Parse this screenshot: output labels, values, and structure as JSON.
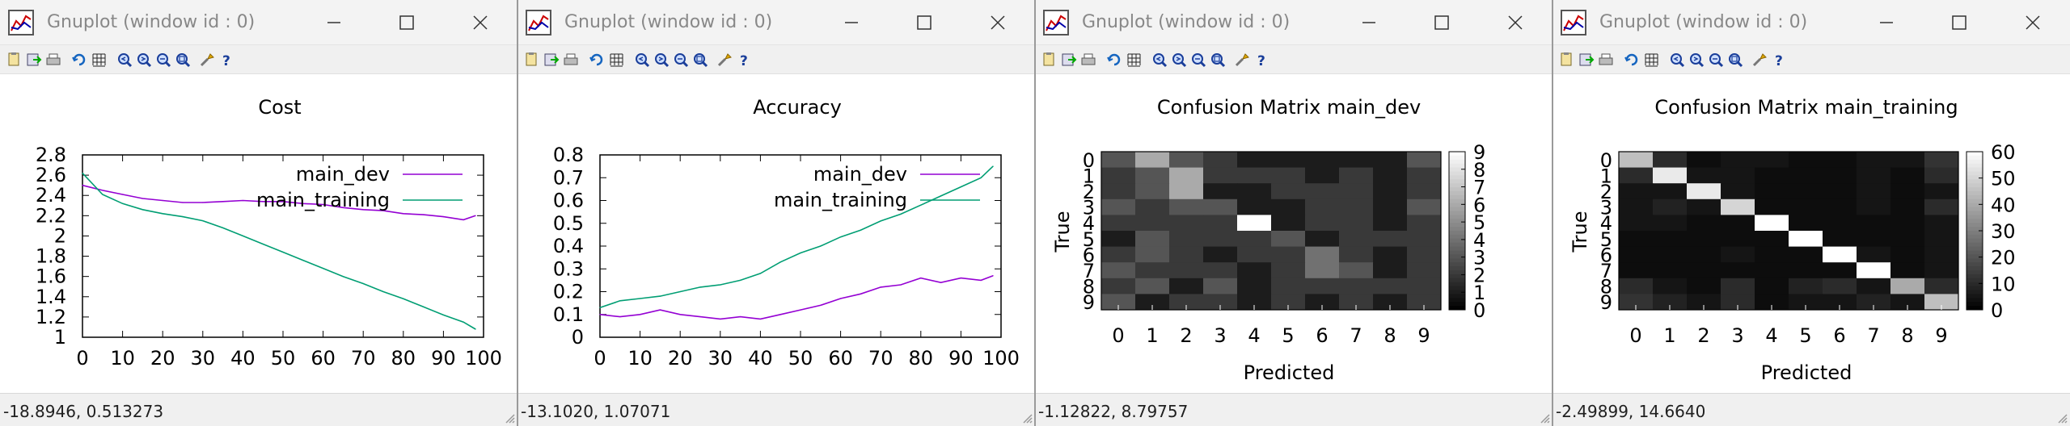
{
  "windows": [
    {
      "title": "Gnuplot (window id : 0)",
      "status": "-18.8946,  0.513273",
      "chart_data": {
        "type": "line",
        "title": "Cost",
        "xlabel": "",
        "ylabel": "",
        "xlim": [
          0,
          100
        ],
        "ylim": [
          1,
          2.8
        ],
        "xticks": [
          "0",
          "10",
          "20",
          "30",
          "40",
          "50",
          "60",
          "70",
          "80",
          "90",
          "100"
        ],
        "yticks": [
          "1",
          "1.2",
          "1.4",
          "1.6",
          "1.8",
          "2",
          "2.2",
          "2.4",
          "2.6",
          "2.8"
        ],
        "legend": "top-right",
        "series": [
          {
            "name": "main_dev",
            "color": "#9400d3",
            "x": [
              0,
              5,
              10,
              15,
              20,
              25,
              30,
              35,
              40,
              45,
              50,
              55,
              60,
              65,
              70,
              75,
              80,
              85,
              90,
              95,
              98
            ],
            "y": [
              2.5,
              2.45,
              2.41,
              2.37,
              2.35,
              2.33,
              2.33,
              2.34,
              2.35,
              2.34,
              2.34,
              2.32,
              2.31,
              2.28,
              2.26,
              2.25,
              2.22,
              2.21,
              2.19,
              2.16,
              2.2
            ]
          },
          {
            "name": "main_training",
            "color": "#009e73",
            "x": [
              0,
              5,
              10,
              15,
              20,
              25,
              30,
              35,
              40,
              45,
              50,
              55,
              60,
              65,
              70,
              75,
              80,
              85,
              90,
              95,
              98
            ],
            "y": [
              2.62,
              2.41,
              2.32,
              2.26,
              2.22,
              2.19,
              2.15,
              2.08,
              2.0,
              1.92,
              1.84,
              1.76,
              1.68,
              1.6,
              1.53,
              1.45,
              1.38,
              1.3,
              1.22,
              1.15,
              1.08
            ]
          }
        ]
      }
    },
    {
      "title": "Gnuplot (window id : 0)",
      "status": "-13.1020,  1.07071",
      "chart_data": {
        "type": "line",
        "title": "Accuracy",
        "xlabel": "",
        "ylabel": "",
        "xlim": [
          0,
          100
        ],
        "ylim": [
          0,
          0.8
        ],
        "xticks": [
          "0",
          "10",
          "20",
          "30",
          "40",
          "50",
          "60",
          "70",
          "80",
          "90",
          "100"
        ],
        "yticks": [
          "0",
          "0.1",
          "0.2",
          "0.3",
          "0.4",
          "0.5",
          "0.6",
          "0.7",
          "0.8"
        ],
        "legend": "top-right",
        "series": [
          {
            "name": "main_dev",
            "color": "#9400d3",
            "x": [
              0,
              5,
              10,
              15,
              20,
              25,
              30,
              35,
              40,
              45,
              50,
              55,
              60,
              65,
              70,
              75,
              80,
              85,
              90,
              95,
              98
            ],
            "y": [
              0.1,
              0.09,
              0.1,
              0.12,
              0.1,
              0.09,
              0.08,
              0.09,
              0.08,
              0.1,
              0.12,
              0.14,
              0.17,
              0.19,
              0.22,
              0.23,
              0.26,
              0.24,
              0.26,
              0.25,
              0.27
            ]
          },
          {
            "name": "main_training",
            "color": "#009e73",
            "x": [
              0,
              5,
              10,
              15,
              20,
              25,
              30,
              35,
              40,
              45,
              50,
              55,
              60,
              65,
              70,
              75,
              80,
              85,
              90,
              95,
              98
            ],
            "y": [
              0.13,
              0.16,
              0.17,
              0.18,
              0.2,
              0.22,
              0.23,
              0.25,
              0.28,
              0.33,
              0.37,
              0.4,
              0.44,
              0.47,
              0.51,
              0.54,
              0.58,
              0.62,
              0.66,
              0.7,
              0.75
            ]
          }
        ]
      }
    },
    {
      "title": "Gnuplot (window id : 0)",
      "status": "-1.12822,  8.79757",
      "chart_data": {
        "type": "heatmap",
        "title": "Confusion Matrix main_dev",
        "xlabel": "Predicted",
        "ylabel": "True",
        "xticks": [
          "0",
          "1",
          "2",
          "3",
          "4",
          "5",
          "6",
          "7",
          "8",
          "9"
        ],
        "yticks": [
          "0",
          "1",
          "2",
          "3",
          "4",
          "5",
          "6",
          "7",
          "8",
          "9"
        ],
        "cbticks": [
          "0",
          "1",
          "2",
          "3",
          "4",
          "5",
          "6",
          "7",
          "8",
          "9"
        ],
        "cbrange": [
          0,
          9
        ],
        "matrix": [
          [
            3,
            6,
            3,
            2,
            1,
            1,
            1,
            1,
            1,
            3
          ],
          [
            2,
            3,
            6,
            2,
            2,
            2,
            1,
            2,
            1,
            2
          ],
          [
            2,
            3,
            6,
            1,
            1,
            2,
            2,
            2,
            1,
            2
          ],
          [
            3,
            2,
            3,
            3,
            1,
            1,
            2,
            2,
            1,
            3
          ],
          [
            2,
            2,
            2,
            2,
            9,
            1,
            2,
            2,
            1,
            2
          ],
          [
            1,
            3,
            2,
            2,
            2,
            3,
            1,
            2,
            2,
            2
          ],
          [
            2,
            3,
            2,
            1,
            2,
            2,
            4,
            2,
            1,
            2
          ],
          [
            3,
            2,
            2,
            2,
            1,
            2,
            4,
            3,
            1,
            2
          ],
          [
            2,
            3,
            1,
            3,
            1,
            2,
            2,
            2,
            2,
            2
          ],
          [
            3,
            1,
            2,
            2,
            1,
            2,
            1,
            2,
            1,
            2
          ]
        ]
      },
      "cursor_pos": "-1.12822, 8.79757"
    },
    {
      "title": "Gnuplot (window id : 0)",
      "status": "-2.49899,  14.6640",
      "chart_data": {
        "type": "heatmap",
        "title": "Confusion Matrix main_training",
        "xlabel": "Predicted",
        "ylabel": "True",
        "xticks": [
          "0",
          "1",
          "2",
          "3",
          "4",
          "5",
          "6",
          "7",
          "8",
          "9"
        ],
        "yticks": [
          "0",
          "1",
          "2",
          "3",
          "4",
          "5",
          "6",
          "7",
          "8",
          "9"
        ],
        "cbticks": [
          "0",
          "10",
          "20",
          "30",
          "40",
          "50",
          "60"
        ],
        "cbrange": [
          0,
          60
        ],
        "matrix": [
          [
            45,
            10,
            3,
            5,
            5,
            3,
            3,
            5,
            5,
            12
          ],
          [
            10,
            55,
            5,
            5,
            3,
            3,
            3,
            5,
            3,
            10
          ],
          [
            5,
            5,
            55,
            5,
            3,
            3,
            3,
            5,
            3,
            5
          ],
          [
            5,
            8,
            5,
            50,
            3,
            3,
            3,
            5,
            3,
            10
          ],
          [
            5,
            5,
            3,
            3,
            60,
            3,
            3,
            3,
            3,
            5
          ],
          [
            3,
            3,
            3,
            3,
            3,
            60,
            3,
            3,
            3,
            5
          ],
          [
            3,
            3,
            3,
            5,
            3,
            3,
            60,
            5,
            3,
            5
          ],
          [
            3,
            3,
            3,
            3,
            3,
            3,
            3,
            60,
            3,
            5
          ],
          [
            10,
            5,
            3,
            10,
            3,
            8,
            10,
            5,
            40,
            10
          ],
          [
            12,
            8,
            5,
            10,
            3,
            5,
            5,
            8,
            5,
            45
          ]
        ]
      }
    }
  ],
  "toolbar": {
    "icons": [
      "copy-icon",
      "export-icon",
      "print-icon",
      "replot-icon",
      "grid-icon",
      "zoom-prev-icon",
      "zoom-next-icon",
      "unzoom-icon",
      "zoom-all-icon",
      "config-icon",
      "help-icon"
    ]
  }
}
